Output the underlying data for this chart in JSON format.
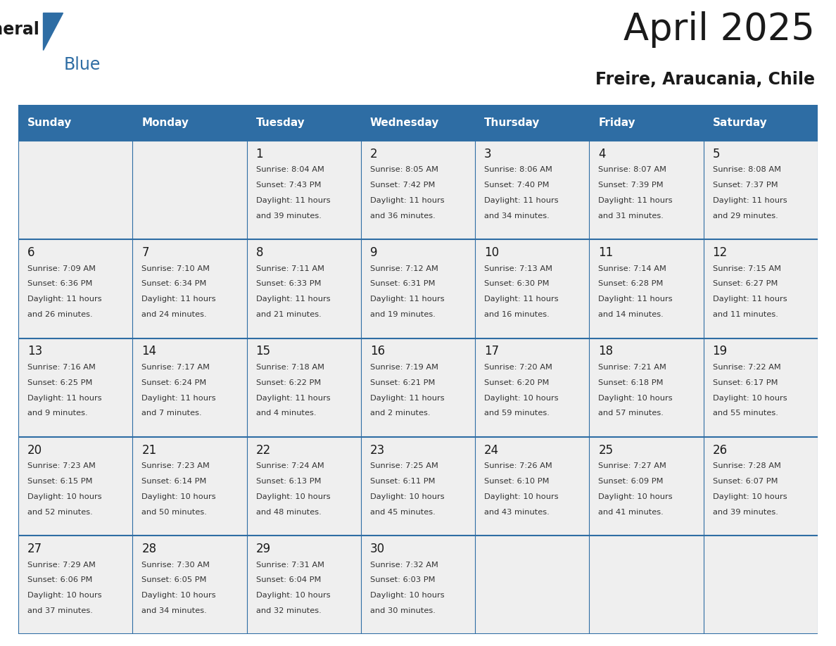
{
  "title": "April 2025",
  "subtitle": "Freire, Araucania, Chile",
  "header_bg": "#2E6DA4",
  "header_text": "#FFFFFF",
  "row_bg": "#EFEFEF",
  "grid_line_color": "#2E6DA4",
  "day_num_color": "#1a1a1a",
  "cell_text_color": "#333333",
  "logo_color1": "#1a1a1a",
  "logo_color2": "#2E6DA4",
  "day_headers": [
    "Sunday",
    "Monday",
    "Tuesday",
    "Wednesday",
    "Thursday",
    "Friday",
    "Saturday"
  ],
  "calendar": [
    [
      {
        "day": "",
        "sunrise": "",
        "sunset": "",
        "daylight": ""
      },
      {
        "day": "",
        "sunrise": "",
        "sunset": "",
        "daylight": ""
      },
      {
        "day": "1",
        "sunrise": "8:04 AM",
        "sunset": "7:43 PM",
        "daylight": "11 hours and 39 minutes."
      },
      {
        "day": "2",
        "sunrise": "8:05 AM",
        "sunset": "7:42 PM",
        "daylight": "11 hours and 36 minutes."
      },
      {
        "day": "3",
        "sunrise": "8:06 AM",
        "sunset": "7:40 PM",
        "daylight": "11 hours and 34 minutes."
      },
      {
        "day": "4",
        "sunrise": "8:07 AM",
        "sunset": "7:39 PM",
        "daylight": "11 hours and 31 minutes."
      },
      {
        "day": "5",
        "sunrise": "8:08 AM",
        "sunset": "7:37 PM",
        "daylight": "11 hours and 29 minutes."
      }
    ],
    [
      {
        "day": "6",
        "sunrise": "7:09 AM",
        "sunset": "6:36 PM",
        "daylight": "11 hours and 26 minutes."
      },
      {
        "day": "7",
        "sunrise": "7:10 AM",
        "sunset": "6:34 PM",
        "daylight": "11 hours and 24 minutes."
      },
      {
        "day": "8",
        "sunrise": "7:11 AM",
        "sunset": "6:33 PM",
        "daylight": "11 hours and 21 minutes."
      },
      {
        "day": "9",
        "sunrise": "7:12 AM",
        "sunset": "6:31 PM",
        "daylight": "11 hours and 19 minutes."
      },
      {
        "day": "10",
        "sunrise": "7:13 AM",
        "sunset": "6:30 PM",
        "daylight": "11 hours and 16 minutes."
      },
      {
        "day": "11",
        "sunrise": "7:14 AM",
        "sunset": "6:28 PM",
        "daylight": "11 hours and 14 minutes."
      },
      {
        "day": "12",
        "sunrise": "7:15 AM",
        "sunset": "6:27 PM",
        "daylight": "11 hours and 11 minutes."
      }
    ],
    [
      {
        "day": "13",
        "sunrise": "7:16 AM",
        "sunset": "6:25 PM",
        "daylight": "11 hours and 9 minutes."
      },
      {
        "day": "14",
        "sunrise": "7:17 AM",
        "sunset": "6:24 PM",
        "daylight": "11 hours and 7 minutes."
      },
      {
        "day": "15",
        "sunrise": "7:18 AM",
        "sunset": "6:22 PM",
        "daylight": "11 hours and 4 minutes."
      },
      {
        "day": "16",
        "sunrise": "7:19 AM",
        "sunset": "6:21 PM",
        "daylight": "11 hours and 2 minutes."
      },
      {
        "day": "17",
        "sunrise": "7:20 AM",
        "sunset": "6:20 PM",
        "daylight": "10 hours and 59 minutes."
      },
      {
        "day": "18",
        "sunrise": "7:21 AM",
        "sunset": "6:18 PM",
        "daylight": "10 hours and 57 minutes."
      },
      {
        "day": "19",
        "sunrise": "7:22 AM",
        "sunset": "6:17 PM",
        "daylight": "10 hours and 55 minutes."
      }
    ],
    [
      {
        "day": "20",
        "sunrise": "7:23 AM",
        "sunset": "6:15 PM",
        "daylight": "10 hours and 52 minutes."
      },
      {
        "day": "21",
        "sunrise": "7:23 AM",
        "sunset": "6:14 PM",
        "daylight": "10 hours and 50 minutes."
      },
      {
        "day": "22",
        "sunrise": "7:24 AM",
        "sunset": "6:13 PM",
        "daylight": "10 hours and 48 minutes."
      },
      {
        "day": "23",
        "sunrise": "7:25 AM",
        "sunset": "6:11 PM",
        "daylight": "10 hours and 45 minutes."
      },
      {
        "day": "24",
        "sunrise": "7:26 AM",
        "sunset": "6:10 PM",
        "daylight": "10 hours and 43 minutes."
      },
      {
        "day": "25",
        "sunrise": "7:27 AM",
        "sunset": "6:09 PM",
        "daylight": "10 hours and 41 minutes."
      },
      {
        "day": "26",
        "sunrise": "7:28 AM",
        "sunset": "6:07 PM",
        "daylight": "10 hours and 39 minutes."
      }
    ],
    [
      {
        "day": "27",
        "sunrise": "7:29 AM",
        "sunset": "6:06 PM",
        "daylight": "10 hours and 37 minutes."
      },
      {
        "day": "28",
        "sunrise": "7:30 AM",
        "sunset": "6:05 PM",
        "daylight": "10 hours and 34 minutes."
      },
      {
        "day": "29",
        "sunrise": "7:31 AM",
        "sunset": "6:04 PM",
        "daylight": "10 hours and 32 minutes."
      },
      {
        "day": "30",
        "sunrise": "7:32 AM",
        "sunset": "6:03 PM",
        "daylight": "10 hours and 30 minutes."
      },
      {
        "day": "",
        "sunrise": "",
        "sunset": "",
        "daylight": ""
      },
      {
        "day": "",
        "sunrise": "",
        "sunset": "",
        "daylight": ""
      },
      {
        "day": "",
        "sunrise": "",
        "sunset": "",
        "daylight": ""
      }
    ]
  ]
}
